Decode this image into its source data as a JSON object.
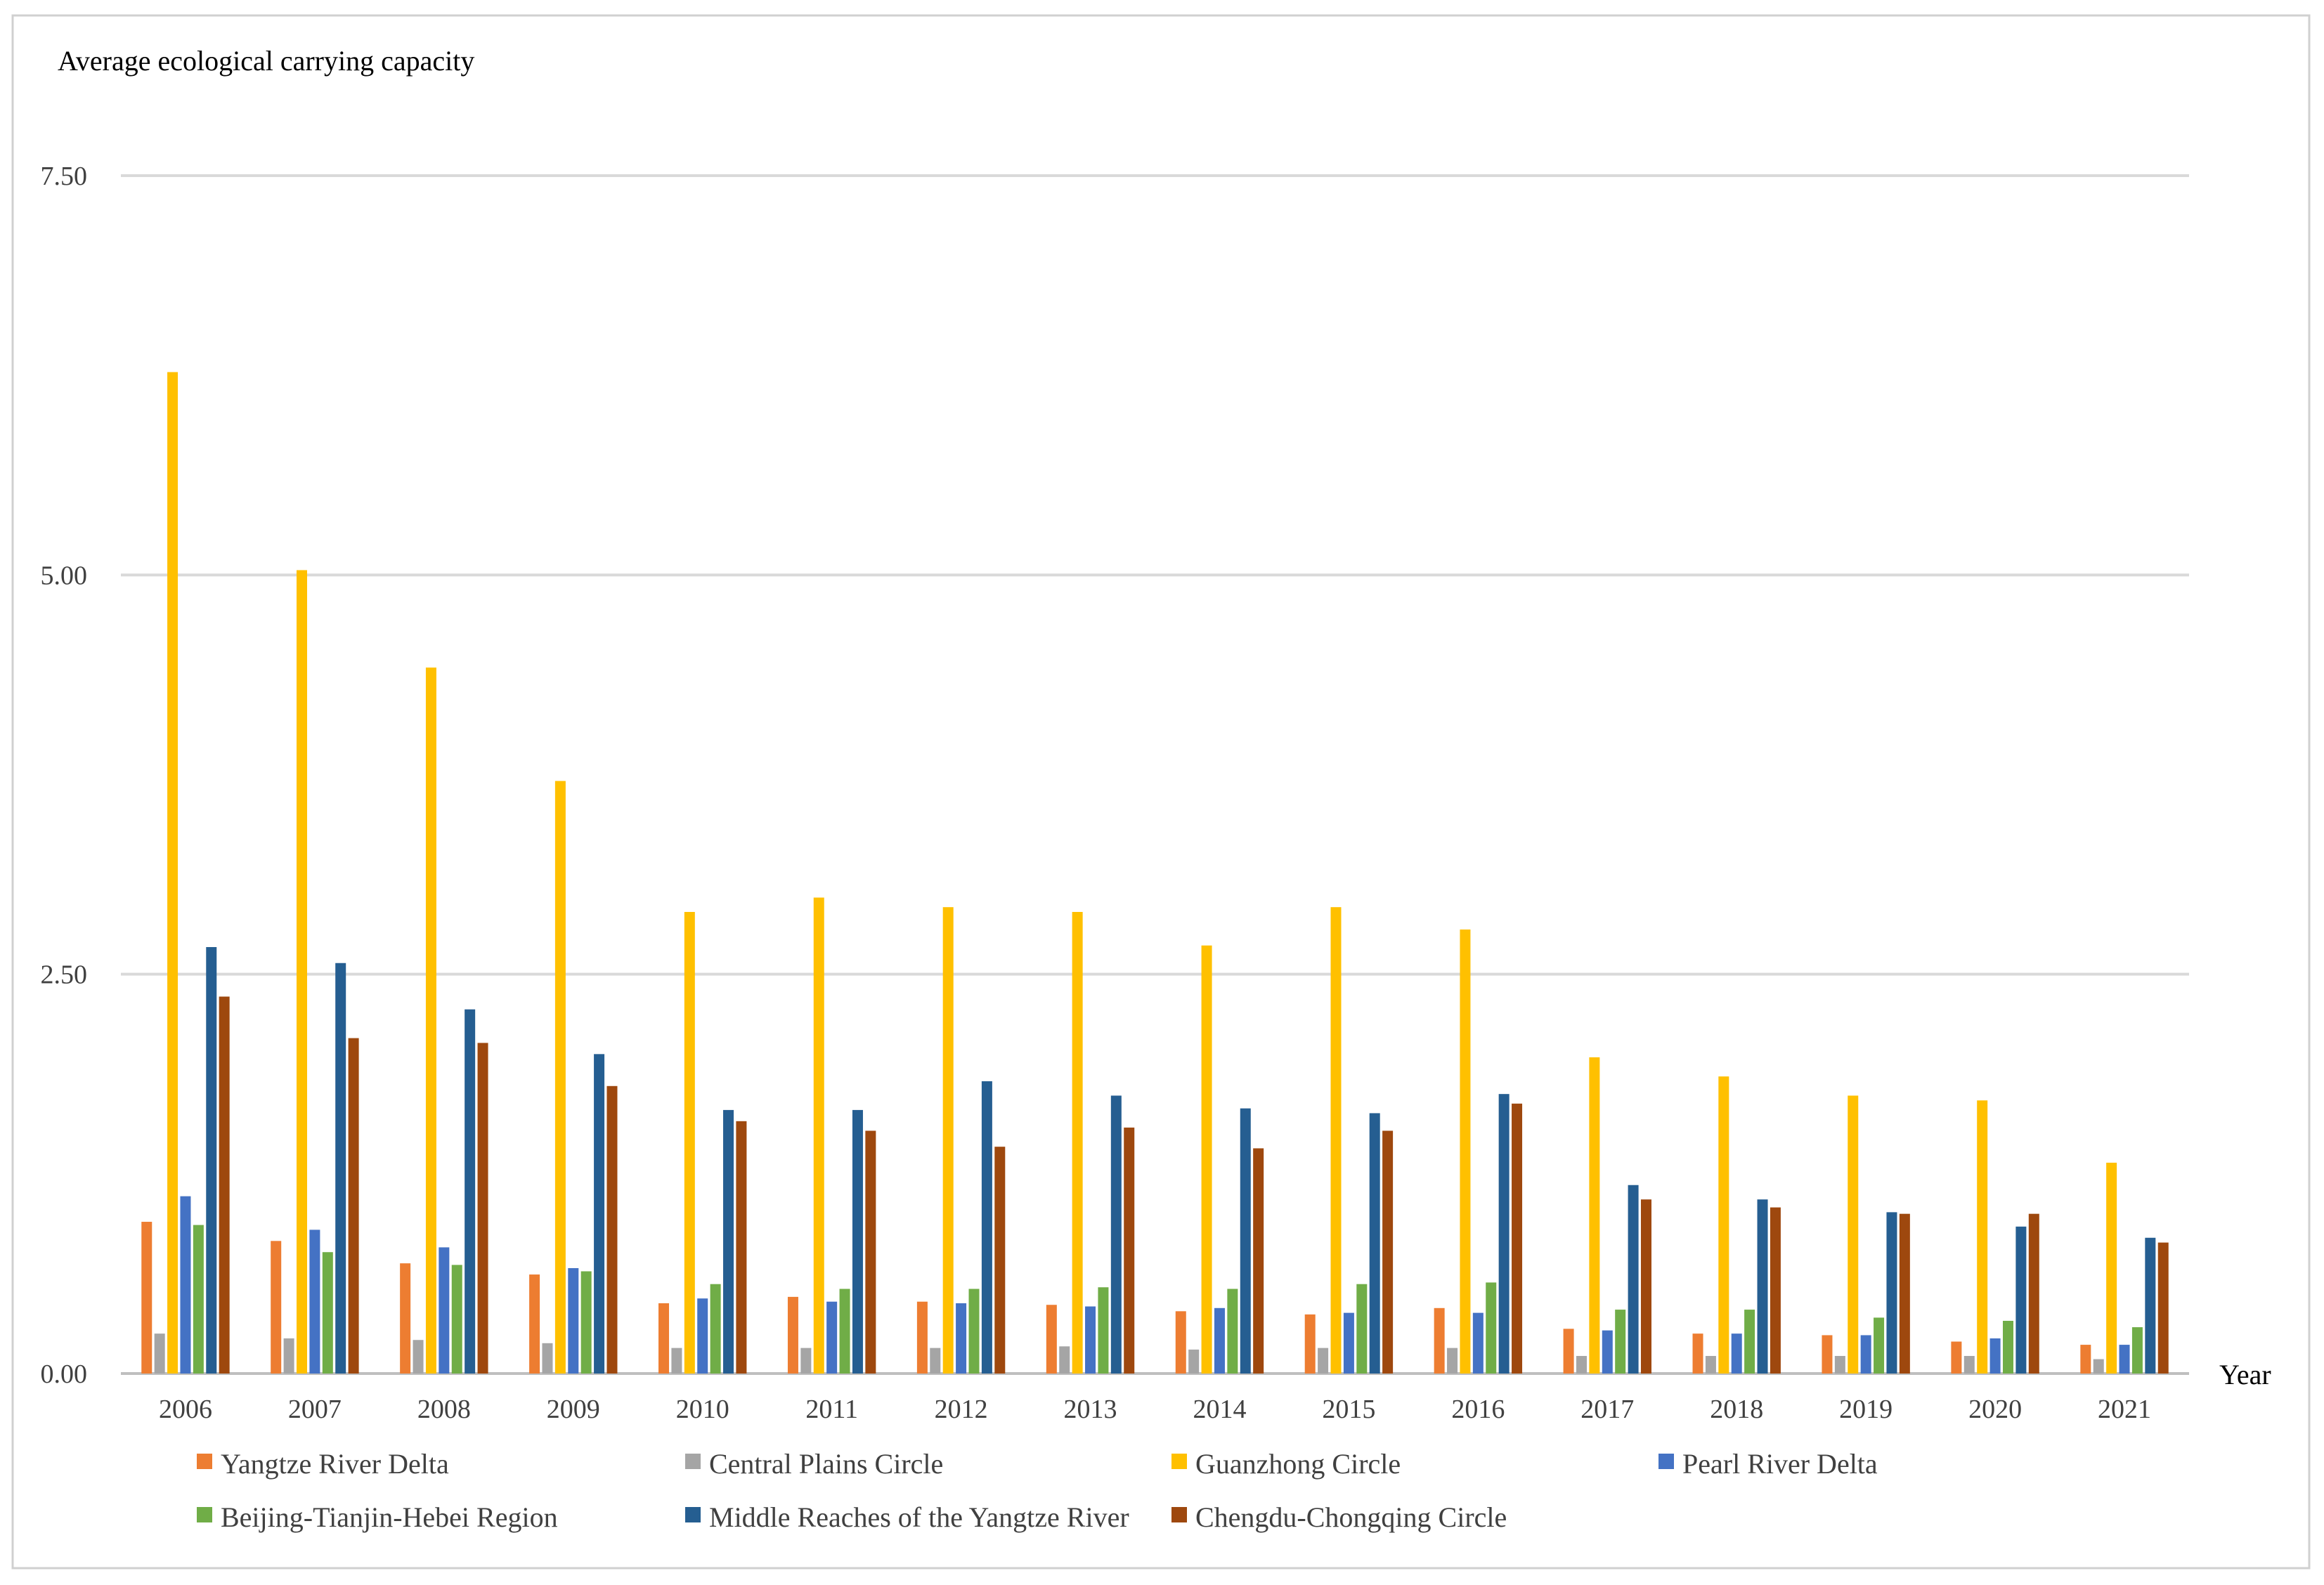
{
  "chart_data": {
    "type": "bar",
    "ylabel": "Average ecological carrying capacity",
    "xlabel": "Year",
    "ylim": [
      0,
      7.5
    ],
    "yticks": [
      "0.00",
      "2.50",
      "5.00",
      "7.50"
    ],
    "grid": true,
    "legend_position": "bottom",
    "categories": [
      "2006",
      "2007",
      "2008",
      "2009",
      "2010",
      "2011",
      "2012",
      "2013",
      "2014",
      "2015",
      "2016",
      "2017",
      "2018",
      "2019",
      "2020",
      "2021"
    ],
    "series": [
      {
        "name": "Yangtze River Delta",
        "color": "#ED7D31",
        "values": [
          0.95,
          0.83,
          0.69,
          0.62,
          0.44,
          0.48,
          0.45,
          0.43,
          0.39,
          0.37,
          0.41,
          0.28,
          0.25,
          0.24,
          0.2,
          0.18
        ]
      },
      {
        "name": "Central Plains Circle",
        "color": "#A5A5A5",
        "values": [
          0.25,
          0.22,
          0.21,
          0.19,
          0.16,
          0.16,
          0.16,
          0.17,
          0.15,
          0.16,
          0.16,
          0.11,
          0.11,
          0.11,
          0.11,
          0.09
        ]
      },
      {
        "name": "Guanzhong Circle",
        "color": "#FFC000",
        "values": [
          6.27,
          5.03,
          4.42,
          3.71,
          2.89,
          2.98,
          2.92,
          2.89,
          2.68,
          2.92,
          2.78,
          1.98,
          1.86,
          1.74,
          1.71,
          1.32
        ]
      },
      {
        "name": "Pearl River Delta",
        "color": "#4472C4",
        "values": [
          1.11,
          0.9,
          0.79,
          0.66,
          0.47,
          0.45,
          0.44,
          0.42,
          0.41,
          0.38,
          0.38,
          0.27,
          0.25,
          0.24,
          0.22,
          0.18
        ]
      },
      {
        "name": "Beijing-Tianjin-Hebei Region",
        "color": "#70AD47",
        "values": [
          0.93,
          0.76,
          0.68,
          0.64,
          0.56,
          0.53,
          0.53,
          0.54,
          0.53,
          0.56,
          0.57,
          0.4,
          0.4,
          0.35,
          0.33,
          0.29
        ]
      },
      {
        "name": "Middle Reaches of the Yangtze River",
        "color": "#255E91",
        "values": [
          2.67,
          2.57,
          2.28,
          2.0,
          1.65,
          1.65,
          1.83,
          1.74,
          1.66,
          1.63,
          1.75,
          1.18,
          1.09,
          1.01,
          0.92,
          0.85
        ]
      },
      {
        "name": "Chengdu-Chongqing Circle",
        "color": "#9E480E",
        "values": [
          2.36,
          2.1,
          2.07,
          1.8,
          1.58,
          1.52,
          1.42,
          1.54,
          1.41,
          1.52,
          1.69,
          1.09,
          1.04,
          1.0,
          1.0,
          0.82
        ]
      }
    ]
  }
}
